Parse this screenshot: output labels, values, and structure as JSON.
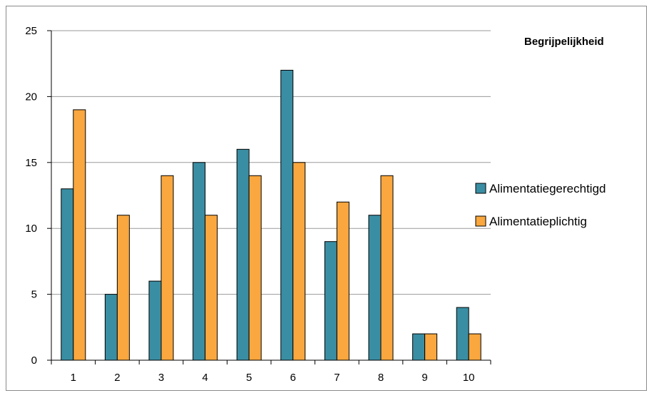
{
  "colors": {
    "series1": "#3a8ea3",
    "series2": "#f9a73e",
    "grid": "#9a9a9a",
    "axis": "#000000",
    "bar_stroke": "#000000"
  },
  "chart_data": {
    "type": "bar",
    "title": "Begrijpelijkheid",
    "xlabel": "",
    "ylabel": "",
    "categories": [
      "1",
      "2",
      "3",
      "4",
      "5",
      "6",
      "7",
      "8",
      "9",
      "10"
    ],
    "series": [
      {
        "name": "Alimentatiegerechtigd",
        "color": "#3a8ea3",
        "values": [
          13,
          5,
          6,
          15,
          16,
          22,
          9,
          11,
          2,
          4
        ]
      },
      {
        "name": "Alimentatieplichtig",
        "color": "#f9a73e",
        "values": [
          19,
          11,
          14,
          11,
          14,
          15,
          12,
          14,
          2,
          2
        ]
      }
    ],
    "ylim": [
      0,
      25
    ],
    "yticks": [
      "0",
      "5",
      "10",
      "15",
      "20",
      "25"
    ],
    "grid": true,
    "legend": "right"
  }
}
